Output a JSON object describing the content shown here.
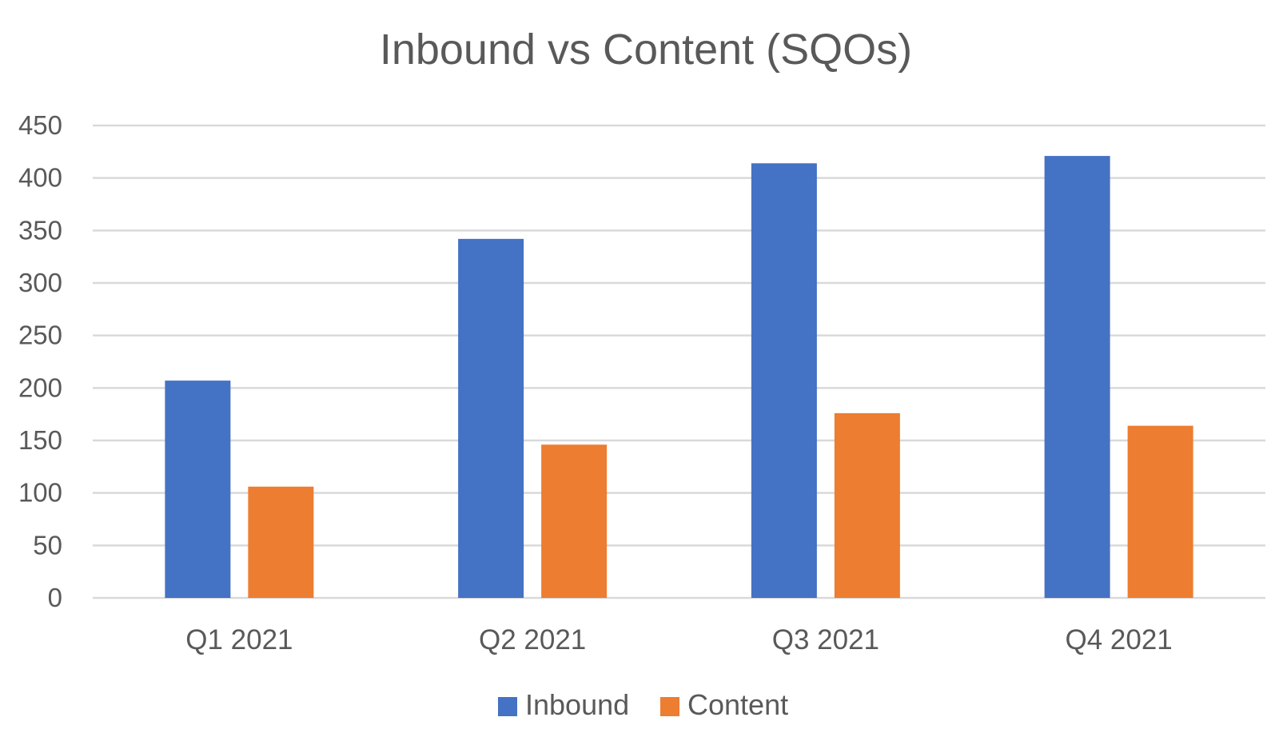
{
  "chart_data": {
    "type": "bar",
    "title": "Inbound vs Content (SQOs)",
    "xlabel": "",
    "ylabel": "",
    "categories": [
      "Q1 2021",
      "Q2 2021",
      "Q3 2021",
      "Q4 2021"
    ],
    "series": [
      {
        "name": "Inbound",
        "color": "#4472c4",
        "values": [
          207,
          342,
          414,
          421
        ]
      },
      {
        "name": "Content",
        "color": "#ed7d31",
        "values": [
          106,
          146,
          176,
          164
        ]
      }
    ],
    "ylim": [
      0,
      450
    ],
    "yticks": [
      "0",
      "50",
      "100",
      "150",
      "200",
      "250",
      "300",
      "350",
      "400",
      "450"
    ],
    "grid": true,
    "legend_position": "bottom"
  }
}
